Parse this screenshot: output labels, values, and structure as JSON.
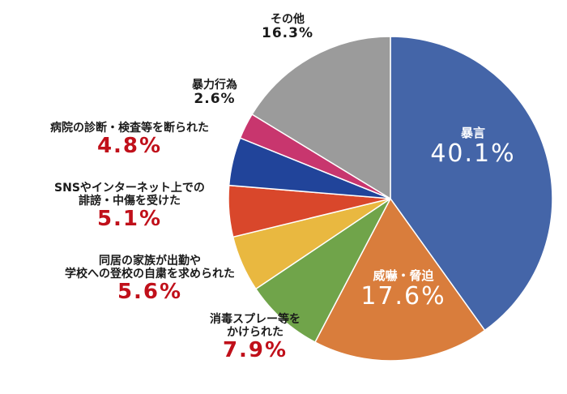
{
  "chart_data": {
    "type": "pie",
    "unit": "%",
    "slices": [
      {
        "label": "暴言",
        "value": 40.1,
        "value_label": "40.1%",
        "color": "#4465a8"
      },
      {
        "label": "威嚇・脅迫",
        "value": 17.6,
        "value_label": "17.6%",
        "color": "#d97d3c"
      },
      {
        "label": "消毒スプレー等を\nかけられた",
        "value": 7.9,
        "value_label": "7.9%",
        "color": "#70a44a"
      },
      {
        "label": "同居の家族が出勤や\n学校への登校の自粛を求められた",
        "value": 5.6,
        "value_label": "5.6%",
        "color": "#e9b840"
      },
      {
        "label": "SNSやインターネット上での\n誹謗・中傷を受けた",
        "value": 5.1,
        "value_label": "5.1%",
        "color": "#d9472b"
      },
      {
        "label": "病院の診断・検査等を断られた",
        "value": 4.8,
        "value_label": "4.8%",
        "color": "#21449a"
      },
      {
        "label": "暴力行為",
        "value": 2.6,
        "value_label": "2.6%",
        "color": "#c8366e"
      },
      {
        "label": "その他",
        "value": 16.3,
        "value_label": "16.3%",
        "color": "#9b9b9b"
      }
    ]
  }
}
